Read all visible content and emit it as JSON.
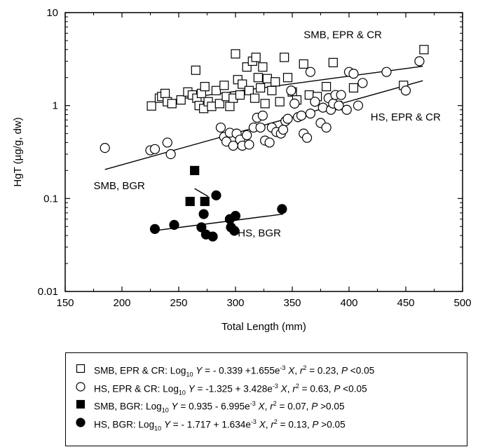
{
  "chart_data": {
    "type": "scatter",
    "ylabel": "HgT (µg/g, dw)",
    "xlabel": "Total Length (mm)",
    "xlim": [
      150,
      500
    ],
    "ylim": [
      0.01,
      10
    ],
    "yscale": "log",
    "x_ticks": [
      150,
      200,
      250,
      300,
      350,
      400,
      450,
      500
    ],
    "x_tick_labels": [
      "150",
      "200",
      "250",
      "300",
      "350",
      "400",
      "450",
      "500"
    ],
    "y_ticks": [
      0.01,
      0.1,
      1,
      10
    ],
    "y_tick_labels": [
      "0.01",
      "0.1",
      "1",
      "10"
    ],
    "grid": false,
    "legend_position": "below plot",
    "series": [
      {
        "name": "SMB, EPR & CR",
        "marker": "open-square",
        "points": [
          [
            226,
            0.99
          ],
          [
            233,
            1.2
          ],
          [
            235,
            1.25
          ],
          [
            238,
            1.35
          ],
          [
            240,
            1.1
          ],
          [
            244,
            1.05
          ],
          [
            252,
            1.15
          ],
          [
            258,
            1.4
          ],
          [
            262,
            1.3
          ],
          [
            266,
            1.2
          ],
          [
            265,
            2.4
          ],
          [
            268,
            1.0
          ],
          [
            270,
            1.35
          ],
          [
            272,
            0.93
          ],
          [
            273,
            1.6
          ],
          [
            276,
            1.1
          ],
          [
            279,
            0.98
          ],
          [
            283,
            1.45
          ],
          [
            286,
            1.05
          ],
          [
            290,
            1.65
          ],
          [
            292,
            1.25
          ],
          [
            295,
            0.98
          ],
          [
            298,
            1.2
          ],
          [
            300,
            3.6
          ],
          [
            302,
            1.9
          ],
          [
            304,
            1.3
          ],
          [
            306,
            1.7
          ],
          [
            310,
            2.6
          ],
          [
            312,
            1.45
          ],
          [
            315,
            3.0
          ],
          [
            317,
            1.2
          ],
          [
            318,
            3.3
          ],
          [
            320,
            2.0
          ],
          [
            322,
            1.55
          ],
          [
            324,
            2.6
          ],
          [
            326,
            1.05
          ],
          [
            328,
            1.95
          ],
          [
            332,
            1.45
          ],
          [
            335,
            1.8
          ],
          [
            339,
            1.1
          ],
          [
            343,
            3.3
          ],
          [
            346,
            2.0
          ],
          [
            350,
            1.4
          ],
          [
            354,
            1.15
          ],
          [
            360,
            2.8
          ],
          [
            365,
            1.3
          ],
          [
            372,
            1.25
          ],
          [
            380,
            1.6
          ],
          [
            386,
            2.9
          ],
          [
            390,
            1.0
          ],
          [
            404,
            1.55
          ],
          [
            448,
            1.65
          ],
          [
            466,
            4.0
          ]
        ],
        "fit": {
          "x": [
            230,
            465
          ],
          "y": [
            1.09,
            2.65
          ]
        }
      },
      {
        "name": "HS, EPR & CR",
        "marker": "open-circle",
        "points": [
          [
            185,
            0.35
          ],
          [
            225,
            0.33
          ],
          [
            229,
            0.34
          ],
          [
            240,
            0.4
          ],
          [
            243,
            0.3
          ],
          [
            287,
            0.58
          ],
          [
            290,
            0.46
          ],
          [
            292,
            0.41
          ],
          [
            295,
            0.51
          ],
          [
            298,
            0.37
          ],
          [
            301,
            0.5
          ],
          [
            304,
            0.43
          ],
          [
            306,
            0.37
          ],
          [
            310,
            0.48
          ],
          [
            312,
            0.38
          ],
          [
            316,
            0.58
          ],
          [
            319,
            0.74
          ],
          [
            322,
            0.58
          ],
          [
            324,
            0.78
          ],
          [
            326,
            0.42
          ],
          [
            330,
            0.4
          ],
          [
            332,
            0.58
          ],
          [
            336,
            0.52
          ],
          [
            340,
            0.5
          ],
          [
            342,
            0.55
          ],
          [
            344,
            0.68
          ],
          [
            346,
            0.72
          ],
          [
            349,
            1.45
          ],
          [
            352,
            1.05
          ],
          [
            355,
            0.75
          ],
          [
            358,
            0.78
          ],
          [
            360,
            0.5
          ],
          [
            363,
            0.45
          ],
          [
            366,
            0.82
          ],
          [
            366,
            2.3
          ],
          [
            370,
            1.1
          ],
          [
            375,
            0.65
          ],
          [
            377,
            0.95
          ],
          [
            380,
            0.58
          ],
          [
            382,
            1.2
          ],
          [
            384,
            0.9
          ],
          [
            386,
            1.05
          ],
          [
            388,
            1.3
          ],
          [
            391,
            1.0
          ],
          [
            393,
            1.3
          ],
          [
            398,
            0.9
          ],
          [
            400,
            2.3
          ],
          [
            404,
            2.2
          ],
          [
            408,
            1.0
          ],
          [
            412,
            1.75
          ],
          [
            433,
            2.3
          ],
          [
            450,
            1.45
          ],
          [
            462,
            3.0
          ]
        ],
        "fit": {
          "x": [
            185,
            465
          ],
          "y": [
            0.205,
            1.85
          ]
        }
      },
      {
        "name": "SMB, BGR",
        "marker": "filled-square",
        "points": [
          [
            260,
            0.093
          ],
          [
            264,
            0.2
          ],
          [
            273,
            0.093
          ]
        ],
        "fit": {
          "x": [
            264,
            276
          ],
          "y": [
            0.128,
            0.105
          ]
        }
      },
      {
        "name": "HS, BGR",
        "marker": "filled-circle",
        "points": [
          [
            229,
            0.047
          ],
          [
            246,
            0.052
          ],
          [
            270,
            0.049
          ],
          [
            272,
            0.068
          ],
          [
            274,
            0.041
          ],
          [
            280,
            0.039
          ],
          [
            283,
            0.108
          ],
          [
            295,
            0.06
          ],
          [
            296,
            0.049
          ],
          [
            299,
            0.045
          ],
          [
            300,
            0.065
          ],
          [
            341,
            0.077
          ]
        ],
        "fit": {
          "x": [
            228,
            342
          ],
          "y": [
            0.045,
            0.068
          ]
        }
      }
    ],
    "annotations": [
      {
        "text": "SMB, EPR & CR",
        "x": 360,
        "y": 5.3
      },
      {
        "text": "HS, EPR & CR",
        "x": 419,
        "y": 0.69
      },
      {
        "text": "SMB, BGR",
        "x": 175,
        "y": 0.126
      },
      {
        "text": "HS, BGR",
        "x": 302,
        "y": 0.039
      }
    ],
    "legend_entries": [
      {
        "marker": "open-square",
        "parts": [
          "SMB, EPR & CR: Log",
          "10",
          " ",
          "Y",
          " = - 0.339 +1.655e",
          "-3",
          " ",
          "X",
          ", ",
          "r",
          "2",
          " = 0.23, ",
          "P",
          " <0.05"
        ]
      },
      {
        "marker": "open-circle",
        "parts": [
          "HS, EPR & CR: Log",
          "10",
          " ",
          "Y",
          " = -1.325 + 3.428e",
          "-3",
          " ",
          "X",
          ",  ",
          "r",
          "2",
          " = 0.63, ",
          "P",
          " <0.05"
        ]
      },
      {
        "marker": "filled-square",
        "parts": [
          "SMB, BGR: Log",
          "10",
          " ",
          "Y",
          " = 0.935 - 6.995e",
          "-3",
          " ",
          "X",
          ", ",
          "r",
          "2",
          " = 0.07, ",
          "P",
          " >0.05"
        ]
      },
      {
        "marker": "filled-circle",
        "parts": [
          "HS, BGR: Log",
          "10",
          " ",
          "Y",
          " = - 1.717 + 1.634e",
          "-3",
          " ",
          "X",
          ",  ",
          "r",
          "2",
          " = 0.13, ",
          "P",
          " >0.05"
        ]
      }
    ]
  }
}
